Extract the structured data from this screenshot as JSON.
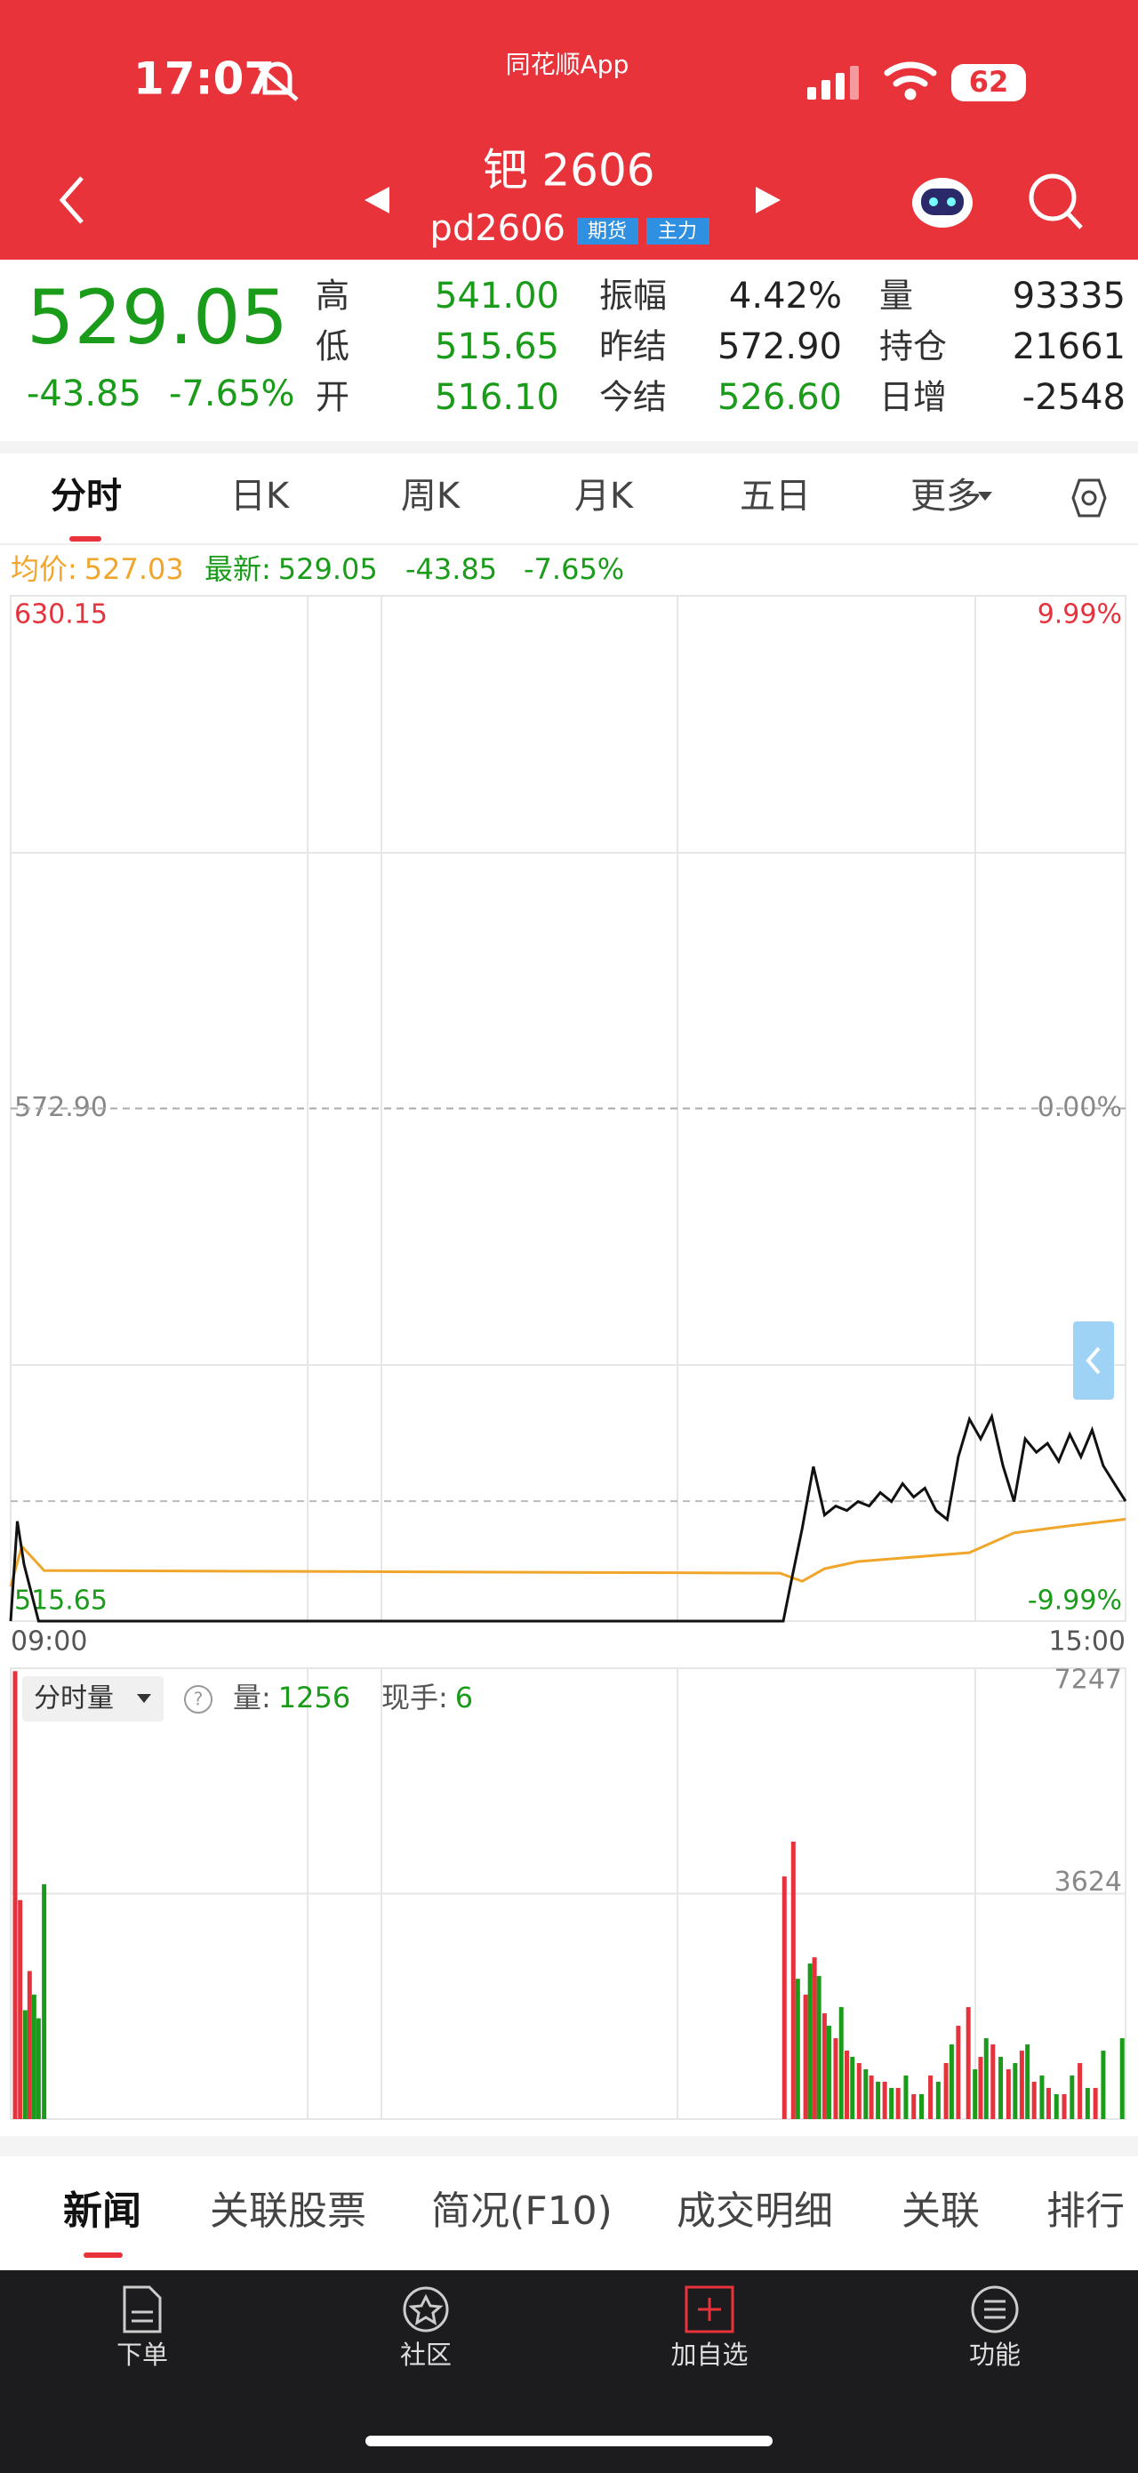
{
  "status": {
    "time": "17:07",
    "app": "同花顺App",
    "battery": "62"
  },
  "header": {
    "title": "钯 2606",
    "code": "pd2606",
    "tags": [
      "期货",
      "主力"
    ]
  },
  "quote": {
    "price": "529.05",
    "change": "-43.85",
    "change_pct": "-7.65%",
    "fields": [
      [
        {
          "label": "高",
          "value": "541.00",
          "color": "#1a9b1a"
        },
        {
          "label": "振幅",
          "value": "4.42%",
          "color": "#222222"
        },
        {
          "label": "量",
          "value": "93335",
          "color": "#222222"
        }
      ],
      [
        {
          "label": "低",
          "value": "515.65",
          "color": "#1a9b1a"
        },
        {
          "label": "昨结",
          "value": "572.90",
          "color": "#222222"
        },
        {
          "label": "持仓",
          "value": "21661",
          "color": "#222222"
        }
      ],
      [
        {
          "label": "开",
          "value": "516.10",
          "color": "#1a9b1a"
        },
        {
          "label": "今结",
          "value": "526.60",
          "color": "#1a9b1a"
        },
        {
          "label": "日增",
          "value": "-2548",
          "color": "#222222"
        }
      ]
    ]
  },
  "tabs": [
    "分时",
    "日K",
    "周K",
    "月K",
    "五日",
    "更多"
  ],
  "info": {
    "avg_label": "均价:",
    "avg": "527.03",
    "latest_label": "最新:",
    "latest": "529.05",
    "change": "-43.85",
    "change_pct": "-7.65%"
  },
  "chart_data": [
    {
      "type": "line",
      "xlim": [
        0,
        100
      ],
      "xticks": [
        {
          "value": 0,
          "label": "09:00"
        },
        {
          "value": 100,
          "label": "15:00"
        }
      ],
      "ylim": [
        515.65,
        630.15
      ],
      "yticks": [
        515.65,
        {
          "value": 572.9,
          "label": "572.90"
        },
        630.15
      ],
      "y2lim": [
        -9.99,
        9.99
      ],
      "y2ticks": [
        {
          "value": -9.99,
          "label": "-9.99%"
        },
        {
          "value": 0,
          "label": "0.00%"
        },
        {
          "value": 9.99,
          "label": "9.99%"
        }
      ],
      "series": [
        {
          "color": "#111111",
          "x": [
            0,
            0.6,
            1.2,
            2.5,
            69.3,
            70,
            71,
            72,
            73,
            74,
            75,
            76,
            77,
            78,
            79,
            80,
            81,
            82,
            83,
            84,
            85,
            86,
            87,
            88,
            89,
            90,
            91,
            92,
            93,
            94,
            95,
            96,
            97,
            98,
            99,
            100
          ],
          "values": [
            515.65,
            526.8,
            522,
            515.65,
            515.65,
            520,
            526,
            532.9,
            527.5,
            528.5,
            528,
            529,
            528.5,
            530,
            529,
            531,
            529.5,
            530.5,
            528,
            527,
            534,
            538.2,
            536,
            538.5,
            533,
            529,
            536,
            534.5,
            535.5,
            533.5,
            536.5,
            534,
            537,
            533,
            531,
            529.05
          ]
        },
        {
          "color": "#f0a62a",
          "x": [
            0,
            1,
            3,
            69,
            71,
            73,
            76,
            86,
            90,
            95,
            100
          ],
          "values": [
            519.5,
            524,
            521.3,
            521,
            520.1,
            521.5,
            522.3,
            523.3,
            525.5,
            526.3,
            527.03
          ]
        }
      ]
    },
    {
      "type": "bar",
      "xlim": [
        0,
        100
      ],
      "ylim": [
        0,
        7247
      ],
      "yticks": [
        3624,
        7247
      ],
      "series": [
        {
          "color": "#e5323c",
          "x": [
            0.4,
            0.85,
            1.7,
            69.4,
            70.2,
            71.3,
            72.1,
            73,
            74,
            75,
            76.1,
            77.2,
            78.4,
            79.6,
            81,
            82.5,
            83.9,
            85,
            85.9,
            87,
            88.1,
            89.5,
            90.7,
            91.8,
            93.1,
            94.5,
            95.9,
            97.3
          ],
          "values": [
            7200,
            3520,
            2380,
            3900,
            4460,
            2000,
            2600,
            1700,
            1300,
            1100,
            900,
            700,
            600,
            500,
            400,
            700,
            900,
            1500,
            1800,
            1000,
            1200,
            800,
            1100,
            600,
            500,
            400,
            900,
            500
          ]
        },
        {
          "color": "#1a9b1a",
          "x": [
            1.3,
            2.1,
            2.5,
            3,
            70.6,
            71.7,
            72.5,
            73.4,
            74.5,
            75.5,
            76.7,
            77.8,
            79,
            80.3,
            81.7,
            83.2,
            84.4,
            86.5,
            87.5,
            88.8,
            90.1,
            91.2,
            92.5,
            93.8,
            95.2,
            96.6,
            98,
            99.7
          ],
          "values": [
            1750,
            2000,
            1620,
            3775,
            2255,
            2500,
            2300,
            1500,
            1800,
            1000,
            800,
            600,
            500,
            700,
            400,
            600,
            1200,
            800,
            1300,
            1000,
            900,
            1200,
            700,
            400,
            700,
            500,
            1100,
            1300
          ]
        }
      ]
    }
  ],
  "volume_header": {
    "selector": "分时量",
    "volume_label": "量:",
    "volume": "1256",
    "hand_label": "现手:",
    "hand": "6"
  },
  "bottom_tabs": [
    "新闻",
    "关联股票",
    "简况(F10)",
    "成交明细",
    "关联",
    "排行"
  ],
  "nav": [
    "下单",
    "社区",
    "加自选",
    "功能"
  ]
}
